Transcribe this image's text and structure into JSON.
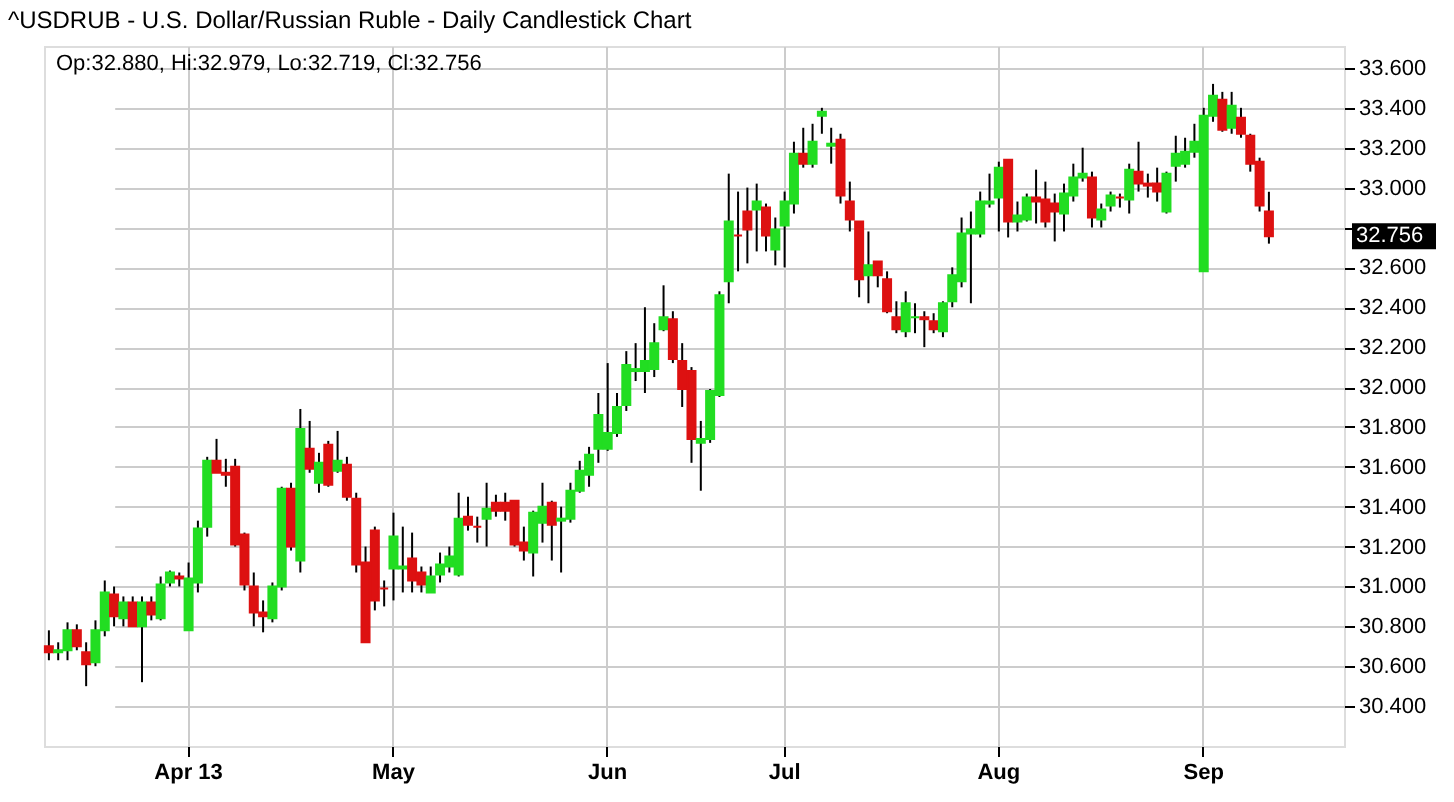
{
  "chart_data": {
    "type": "candlestick",
    "title": "^USDRUB - U.S. Dollar/Russian Ruble - Daily Candlestick Chart",
    "categories": [
      null,
      null,
      null,
      null,
      null,
      null,
      null,
      null,
      null,
      null,
      null,
      null,
      null,
      null,
      null,
      "Apr 13",
      null,
      null,
      null,
      null,
      null,
      null,
      null,
      null,
      null,
      null,
      null,
      null,
      null,
      null,
      null,
      null,
      null,
      null,
      null,
      null,
      null,
      "May",
      null,
      null,
      null,
      null,
      null,
      null,
      null,
      null,
      null,
      null,
      null,
      null,
      null,
      null,
      null,
      null,
      null,
      null,
      null,
      null,
      null,
      null,
      "Jun",
      null,
      null,
      null,
      null,
      null,
      null,
      null,
      null,
      null,
      null,
      null,
      null,
      null,
      null,
      null,
      null,
      null,
      null,
      "Jul",
      null,
      null,
      null,
      null,
      null,
      null,
      null,
      null,
      null,
      null,
      null,
      null,
      null,
      null,
      null,
      null,
      null,
      null,
      null,
      null,
      null,
      null,
      "Aug",
      null,
      null,
      null,
      null,
      null,
      null,
      null,
      null,
      null,
      null,
      null,
      null,
      null,
      null,
      null,
      null,
      null,
      null,
      null,
      null,
      null,
      "Sep",
      null,
      null,
      null,
      null,
      null,
      null,
      null
    ],
    "ohlc": [
      [
        30.7,
        30.78,
        30.63,
        30.67
      ],
      [
        30.67,
        30.72,
        30.63,
        30.68
      ],
      [
        30.68,
        30.82,
        30.63,
        30.78
      ],
      [
        30.78,
        30.81,
        30.68,
        30.7
      ],
      [
        30.67,
        30.72,
        30.5,
        30.61
      ],
      [
        30.62,
        30.83,
        30.6,
        30.78
      ],
      [
        30.78,
        31.03,
        30.75,
        30.97
      ],
      [
        30.96,
        31.0,
        30.8,
        30.85
      ],
      [
        30.84,
        30.95,
        30.8,
        30.92
      ],
      [
        30.92,
        30.95,
        30.8,
        30.8
      ],
      [
        30.8,
        30.95,
        30.52,
        30.92
      ],
      [
        30.92,
        30.95,
        30.83,
        30.86
      ],
      [
        30.84,
        31.05,
        30.83,
        31.01
      ],
      [
        31.02,
        31.08,
        31.0,
        31.07
      ],
      [
        31.05,
        31.07,
        31.0,
        31.04
      ],
      [
        30.78,
        31.12,
        30.78,
        31.04
      ],
      [
        31.02,
        31.33,
        30.97,
        31.29
      ],
      [
        31.3,
        31.65,
        31.25,
        31.63
      ],
      [
        31.63,
        31.74,
        31.57,
        31.57
      ],
      [
        31.57,
        31.64,
        31.5,
        31.56
      ],
      [
        31.6,
        31.64,
        31.2,
        31.21
      ],
      [
        31.26,
        31.27,
        30.98,
        31.01
      ],
      [
        31.0,
        31.07,
        30.8,
        30.87
      ],
      [
        30.87,
        30.93,
        30.77,
        30.85
      ],
      [
        30.84,
        31.02,
        30.82,
        31.0
      ],
      [
        31.0,
        31.5,
        30.98,
        31.49
      ],
      [
        31.49,
        31.52,
        31.18,
        31.2
      ],
      [
        31.13,
        31.89,
        31.07,
        31.79
      ],
      [
        31.69,
        31.83,
        31.57,
        31.59
      ],
      [
        31.52,
        31.67,
        31.47,
        31.62
      ],
      [
        31.71,
        31.73,
        31.5,
        31.51
      ],
      [
        31.58,
        31.78,
        31.57,
        31.63
      ],
      [
        31.61,
        31.65,
        31.43,
        31.45
      ],
      [
        31.44,
        31.47,
        31.07,
        31.11
      ],
      [
        31.12,
        31.2,
        30.72,
        30.72
      ],
      [
        31.28,
        31.3,
        30.88,
        30.93
      ],
      [
        30.99,
        31.03,
        30.9,
        30.99
      ],
      [
        31.09,
        31.37,
        30.93,
        31.25
      ],
      [
        31.09,
        31.3,
        30.97,
        31.1
      ],
      [
        31.14,
        31.27,
        30.97,
        31.03
      ],
      [
        31.07,
        31.1,
        30.97,
        31.01
      ],
      [
        30.97,
        31.1,
        30.97,
        31.05
      ],
      [
        31.06,
        31.17,
        31.02,
        31.11
      ],
      [
        31.1,
        31.2,
        31.07,
        31.15
      ],
      [
        31.06,
        31.47,
        31.05,
        31.34
      ],
      [
        31.35,
        31.45,
        31.28,
        31.31
      ],
      [
        31.3,
        31.35,
        31.22,
        31.3
      ],
      [
        31.34,
        31.52,
        31.2,
        31.39
      ],
      [
        31.42,
        31.46,
        31.35,
        31.38
      ],
      [
        31.42,
        31.47,
        31.33,
        31.38
      ],
      [
        31.43,
        31.43,
        31.2,
        31.21
      ],
      [
        31.22,
        31.3,
        31.13,
        31.18
      ],
      [
        31.17,
        31.38,
        31.05,
        31.37
      ],
      [
        31.32,
        31.52,
        31.22,
        31.4
      ],
      [
        31.42,
        31.43,
        31.13,
        31.31
      ],
      [
        31.33,
        31.4,
        31.07,
        31.34
      ],
      [
        31.34,
        31.52,
        31.32,
        31.48
      ],
      [
        31.48,
        31.63,
        31.47,
        31.58
      ],
      [
        31.56,
        31.7,
        31.5,
        31.66
      ],
      [
        31.69,
        31.97,
        31.62,
        31.86
      ],
      [
        31.69,
        32.12,
        31.68,
        31.77
      ],
      [
        31.77,
        31.97,
        31.75,
        31.9
      ],
      [
        31.91,
        32.18,
        31.88,
        32.11
      ],
      [
        32.08,
        32.22,
        32.03,
        32.09
      ],
      [
        32.08,
        32.4,
        31.97,
        32.13
      ],
      [
        32.09,
        32.32,
        32.05,
        32.22
      ],
      [
        32.29,
        32.51,
        32.28,
        32.35
      ],
      [
        32.34,
        32.38,
        32.12,
        32.14
      ],
      [
        32.13,
        32.22,
        31.9,
        31.99
      ],
      [
        32.08,
        32.1,
        31.62,
        31.74
      ],
      [
        31.72,
        31.83,
        31.48,
        31.74
      ],
      [
        31.74,
        31.99,
        31.72,
        31.98
      ],
      [
        31.96,
        32.48,
        31.95,
        32.46
      ],
      [
        32.53,
        33.07,
        32.42,
        32.83
      ],
      [
        32.76,
        32.98,
        32.58,
        32.76
      ],
      [
        32.88,
        33.0,
        32.62,
        32.79
      ],
      [
        32.89,
        33.02,
        32.68,
        32.93
      ],
      [
        32.9,
        32.92,
        32.68,
        32.76
      ],
      [
        32.69,
        32.85,
        32.61,
        32.79
      ],
      [
        32.81,
        32.98,
        32.6,
        32.93
      ],
      [
        32.92,
        33.23,
        32.87,
        33.17
      ],
      [
        33.17,
        33.3,
        33.1,
        33.12
      ],
      [
        33.12,
        33.32,
        33.1,
        33.23
      ],
      [
        33.36,
        33.4,
        33.27,
        33.38
      ],
      [
        33.21,
        33.3,
        33.12,
        33.22
      ],
      [
        33.24,
        33.27,
        32.92,
        32.96
      ],
      [
        32.93,
        33.03,
        32.78,
        32.84
      ],
      [
        32.83,
        32.83,
        32.45,
        32.54
      ],
      [
        32.56,
        32.78,
        32.42,
        32.61
      ],
      [
        32.63,
        32.63,
        32.5,
        32.56
      ],
      [
        32.54,
        32.58,
        32.37,
        32.38
      ],
      [
        32.35,
        32.43,
        32.27,
        32.29
      ],
      [
        32.28,
        32.48,
        32.25,
        32.42
      ],
      [
        32.35,
        32.42,
        32.27,
        32.35
      ],
      [
        32.35,
        32.38,
        32.2,
        32.34
      ],
      [
        32.33,
        32.37,
        32.27,
        32.29
      ],
      [
        32.28,
        32.43,
        32.25,
        32.42
      ],
      [
        32.43,
        32.6,
        32.4,
        32.56
      ],
      [
        32.53,
        32.85,
        32.5,
        32.77
      ],
      [
        32.77,
        32.88,
        32.42,
        32.79
      ],
      [
        32.77,
        32.98,
        32.75,
        32.93
      ],
      [
        32.92,
        33.07,
        32.9,
        32.93
      ],
      [
        32.95,
        33.13,
        32.78,
        33.1
      ],
      [
        33.14,
        33.14,
        32.75,
        32.83
      ],
      [
        32.83,
        32.93,
        32.78,
        32.86
      ],
      [
        32.84,
        32.97,
        32.83,
        32.95
      ],
      [
        32.95,
        33.09,
        32.82,
        32.93
      ],
      [
        32.94,
        33.03,
        32.8,
        32.83
      ],
      [
        32.92,
        32.97,
        32.73,
        32.88
      ],
      [
        32.87,
        33.02,
        32.78,
        32.97
      ],
      [
        32.96,
        33.12,
        32.93,
        33.05
      ],
      [
        33.05,
        33.2,
        33.03,
        33.07
      ],
      [
        33.05,
        33.08,
        32.8,
        32.85
      ],
      [
        32.84,
        32.92,
        32.8,
        32.89
      ],
      [
        32.91,
        32.98,
        32.88,
        32.96
      ],
      [
        32.95,
        32.97,
        32.9,
        32.95
      ],
      [
        32.94,
        33.12,
        32.87,
        33.09
      ],
      [
        33.08,
        33.23,
        32.98,
        33.02
      ],
      [
        33.02,
        33.07,
        32.95,
        33.01
      ],
      [
        33.02,
        33.1,
        32.93,
        32.98
      ],
      [
        32.88,
        33.08,
        32.87,
        33.07
      ],
      [
        33.11,
        33.26,
        33.03,
        33.17
      ],
      [
        33.12,
        33.25,
        33.1,
        33.18
      ],
      [
        33.18,
        33.32,
        33.15,
        33.23
      ],
      [
        32.58,
        33.4,
        32.58,
        33.36
      ],
      [
        33.36,
        33.52,
        33.33,
        33.46
      ],
      [
        33.44,
        33.48,
        33.28,
        33.29
      ],
      [
        33.3,
        33.48,
        33.27,
        33.41
      ],
      [
        33.35,
        33.4,
        33.25,
        33.27
      ],
      [
        33.26,
        33.27,
        33.08,
        33.12
      ],
      [
        33.13,
        33.15,
        32.88,
        32.91
      ],
      [
        32.88,
        32.979,
        32.719,
        32.756
      ]
    ],
    "colors": [
      "#dd1111",
      "#22dd22",
      "#22dd22",
      "#dd1111",
      "#dd1111",
      "#22dd22",
      "#22dd22",
      "#dd1111",
      "#22dd22",
      "#dd1111",
      "#22dd22",
      "#dd1111",
      "#22dd22",
      "#22dd22",
      "#dd1111",
      "#22dd22",
      "#22dd22",
      "#22dd22",
      "#dd1111",
      "#dd1111",
      "#dd1111",
      "#dd1111",
      "#dd1111",
      "#dd1111",
      "#22dd22",
      "#22dd22",
      "#dd1111",
      "#22dd22",
      "#dd1111",
      "#22dd22",
      "#dd1111",
      "#22dd22",
      "#dd1111",
      "#dd1111",
      "#dd1111",
      "#dd1111",
      "#dd1111",
      "#22dd22",
      "#22dd22",
      "#dd1111",
      "#dd1111",
      "#22dd22",
      "#22dd22",
      "#22dd22",
      "#22dd22",
      "#dd1111",
      "#dd1111",
      "#22dd22",
      "#dd1111",
      "#dd1111",
      "#dd1111",
      "#dd1111",
      "#22dd22",
      "#22dd22",
      "#dd1111",
      "#22dd22",
      "#22dd22",
      "#22dd22",
      "#22dd22",
      "#22dd22",
      "#22dd22",
      "#22dd22",
      "#22dd22",
      "#22dd22",
      "#22dd22",
      "#22dd22",
      "#22dd22",
      "#dd1111",
      "#dd1111",
      "#dd1111",
      "#22dd22",
      "#22dd22",
      "#22dd22",
      "#22dd22",
      "#dd1111",
      "#dd1111",
      "#22dd22",
      "#dd1111",
      "#22dd22",
      "#22dd22",
      "#22dd22",
      "#dd1111",
      "#22dd22",
      "#22dd22",
      "#22dd22",
      "#dd1111",
      "#dd1111",
      "#dd1111",
      "#22dd22",
      "#dd1111",
      "#dd1111",
      "#dd1111",
      "#22dd22",
      "#22dd22",
      "#dd1111",
      "#dd1111",
      "#22dd22",
      "#22dd22",
      "#22dd22",
      "#22dd22",
      "#22dd22",
      "#22dd22",
      "#22dd22",
      "#dd1111",
      "#22dd22",
      "#22dd22",
      "#dd1111",
      "#dd1111",
      "#dd1111",
      "#22dd22",
      "#22dd22",
      "#22dd22",
      "#dd1111",
      "#22dd22",
      "#22dd22",
      "#dd1111",
      "#22dd22",
      "#dd1111",
      "#dd1111",
      "#dd1111",
      "#22dd22",
      "#22dd22",
      "#22dd22",
      "#22dd22",
      "#22dd22",
      "#22dd22",
      "#dd1111",
      "#22dd22",
      "#dd1111",
      "#dd1111",
      "#dd1111",
      "#dd1111"
    ],
    "ylim": [
      30.2,
      33.71
    ],
    "yticks": [
      {
        "value": 30.4,
        "label": "30.400"
      },
      {
        "value": 30.6,
        "label": "30.600"
      },
      {
        "value": 30.8,
        "label": "30.800"
      },
      {
        "value": 31.0,
        "label": "31.000"
      },
      {
        "value": 31.2,
        "label": "31.200"
      },
      {
        "value": 31.4,
        "label": "31.400"
      },
      {
        "value": 31.6,
        "label": "31.600"
      },
      {
        "value": 31.8,
        "label": "31.800"
      },
      {
        "value": 32.0,
        "label": "32.000"
      },
      {
        "value": 32.2,
        "label": "32.200"
      },
      {
        "value": 32.4,
        "label": "32.400"
      },
      {
        "value": 32.6,
        "label": "32.600"
      },
      {
        "value": 32.8,
        "label": null
      },
      {
        "value": 33.0,
        "label": "33.000"
      },
      {
        "value": 33.2,
        "label": "33.200"
      },
      {
        "value": 33.4,
        "label": "33.400"
      },
      {
        "value": 33.6,
        "label": "33.600"
      }
    ],
    "grid": true,
    "annotations": [
      "Op:32.880, Hi:32.979, Lo:32.719, Cl:32.756",
      "32.756"
    ]
  }
}
